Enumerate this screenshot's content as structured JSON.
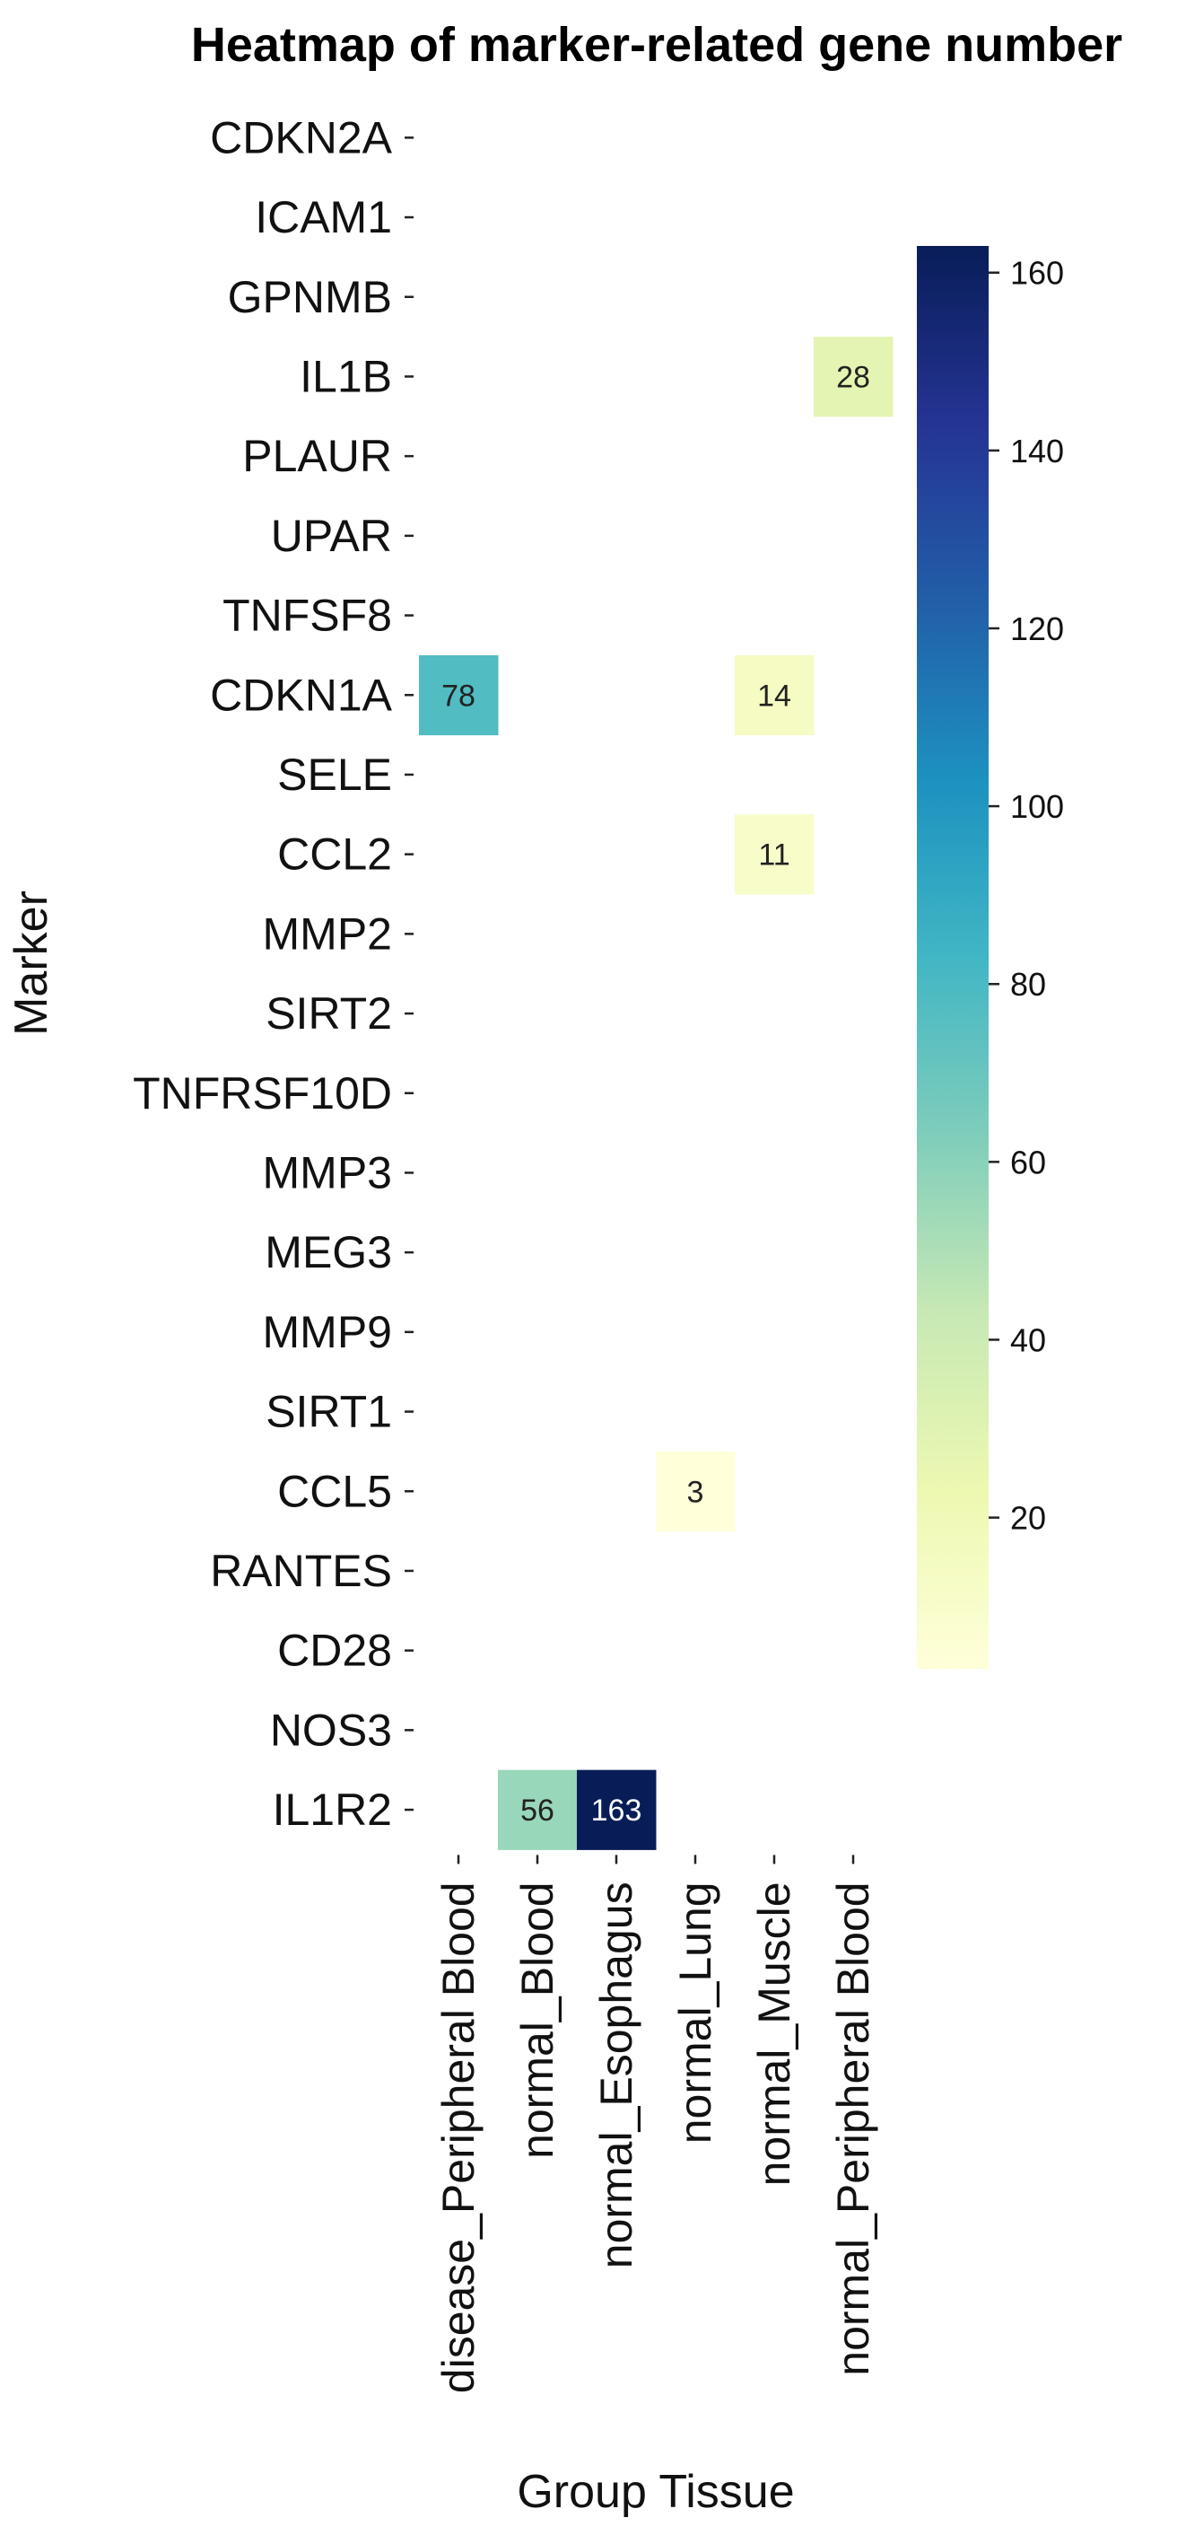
{
  "chart_data": {
    "type": "heatmap",
    "title": "Heatmap of marker-related gene number",
    "xlabel": "Group Tissue",
    "ylabel": "Marker",
    "rows": [
      "CDKN2A",
      "ICAM1",
      "GPNMB",
      "IL1B",
      "PLAUR",
      "UPAR",
      "TNFSF8",
      "CDKN1A",
      "SELE",
      "CCL2",
      "MMP2",
      "SIRT2",
      "TNFRSF10D",
      "MMP3",
      "MEG3",
      "MMP9",
      "SIRT1",
      "CCL5",
      "RANTES",
      "CD28",
      "NOS3",
      "IL1R2"
    ],
    "columns": [
      "disease_Peripheral Blood",
      "normal_Blood",
      "normal_Esophagus",
      "normal_Lung",
      "normal_Muscle",
      "normal_Peripheral Blood"
    ],
    "cells": [
      {
        "row": "IL1B",
        "column": "normal_Peripheral Blood",
        "value": 28
      },
      {
        "row": "CDKN1A",
        "column": "disease_Peripheral Blood",
        "value": 78
      },
      {
        "row": "CDKN1A",
        "column": "normal_Muscle",
        "value": 14
      },
      {
        "row": "CCL2",
        "column": "normal_Muscle",
        "value": 11
      },
      {
        "row": "CCL5",
        "column": "normal_Lung",
        "value": 3
      },
      {
        "row": "IL1R2",
        "column": "normal_Blood",
        "value": 56
      },
      {
        "row": "IL1R2",
        "column": "normal_Esophagus",
        "value": 163
      }
    ],
    "colormap": "YlGnBu",
    "color_range": [
      3,
      163
    ],
    "colorbar_ticks": [
      20,
      40,
      60,
      80,
      100,
      120,
      140,
      160
    ],
    "legend": "colorbar-right"
  }
}
